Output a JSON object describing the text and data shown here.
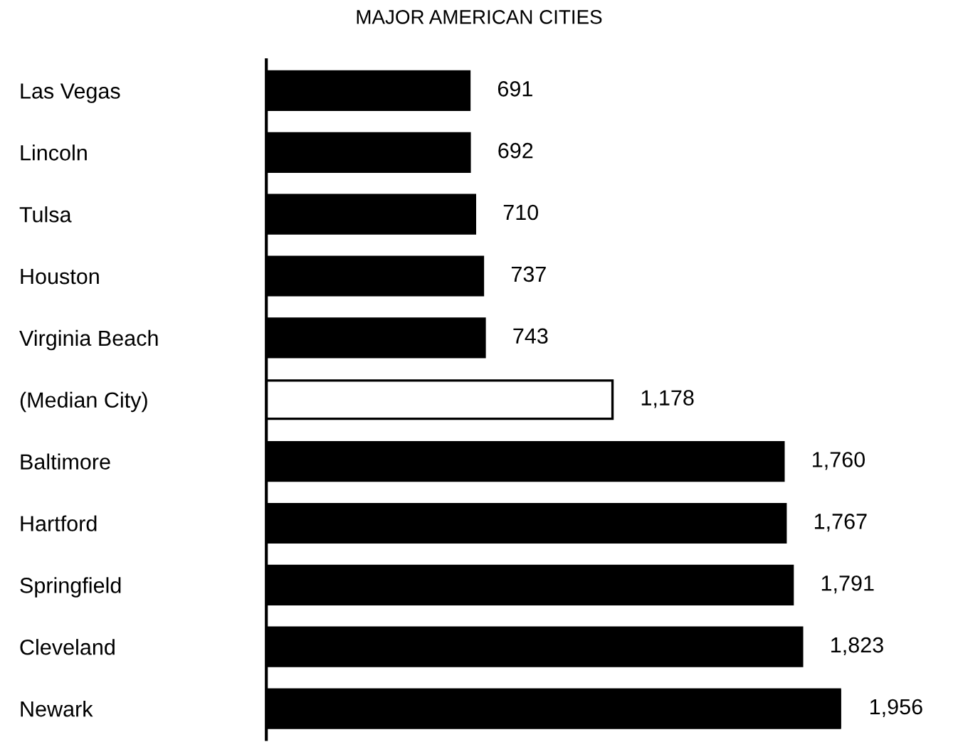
{
  "chart_data": {
    "type": "bar",
    "orientation": "horizontal",
    "title": "MAJOR AMERICAN CITIES",
    "categories": [
      "Las Vegas",
      "Lincoln",
      "Tulsa",
      "Houston",
      "Virginia Beach",
      "(Median City)",
      "Baltimore",
      "Hartford",
      "Springfield",
      "Cleveland",
      "Newark"
    ],
    "values": [
      691,
      692,
      710,
      737,
      743,
      1178,
      1760,
      1767,
      1791,
      1823,
      1956
    ],
    "value_labels": [
      "691",
      "692",
      "710",
      "737",
      "743",
      "1,178",
      "1,760",
      "1,767",
      "1,791",
      "1,823",
      "1,956"
    ],
    "colors": [
      "#000000",
      "#000000",
      "#000000",
      "#000000",
      "#000000",
      "#ffffff",
      "#000000",
      "#000000",
      "#000000",
      "#000000",
      "#000000"
    ],
    "tick_labels": "y",
    "grid": false,
    "legend": false
  }
}
